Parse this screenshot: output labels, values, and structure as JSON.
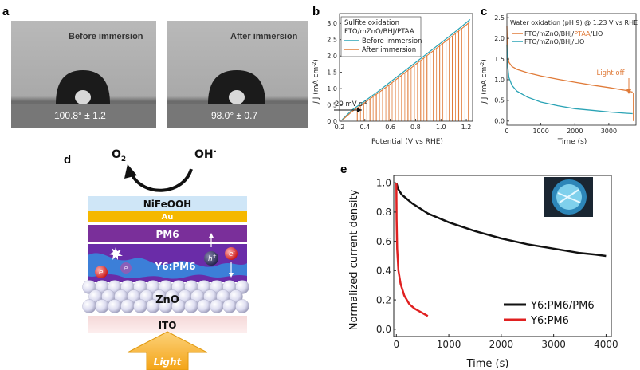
{
  "panel_labels": {
    "a": "a",
    "b": "b",
    "c": "c",
    "d": "d",
    "e": "e"
  },
  "panel_a": {
    "left": {
      "caption": "Before immersion",
      "angle": "100.8° ± 1.2"
    },
    "right": {
      "caption": "After immersion",
      "angle": "98.0° ± 0.7"
    }
  },
  "panel_d": {
    "o2": "O",
    "o2_sub": "2",
    "oh": "OH",
    "oh_sup": "-",
    "layers": {
      "nifeooh": "NiFeOOH",
      "au": "Au",
      "pm6": "PM6",
      "y6pm6": "Y6:PM6",
      "zno": "ZnO",
      "ito": "ITO"
    },
    "carriers": {
      "electron": "e",
      "hole": "h",
      "minus": "-",
      "plus": "+"
    },
    "light": "Light"
  },
  "chart_data": [
    {
      "panel": "b",
      "type": "line",
      "title": "Sulfite oxidation",
      "subtitle": "FTO/mZnO/BHJ/PTAA",
      "xlabel": "Potential (V vs RHE)",
      "ylabel_main": "J (mA cm",
      "ylabel_sup": "-2",
      "ylabel_end": ")",
      "xlim": [
        0.2,
        1.25
      ],
      "ylim": [
        0,
        3.3
      ],
      "xticks": [
        "0.2",
        "0.4",
        "0.6",
        "0.8",
        "1.0",
        "1.2"
      ],
      "yticks": [
        "0.0",
        "0.5",
        "1.0",
        "1.5",
        "2.0",
        "2.5",
        "3.0"
      ],
      "annotation": "20 mV s",
      "annotation_sup": "-1",
      "series": [
        {
          "name": "Before immersion",
          "color": "#2aa3b5",
          "chopped": false,
          "x": [
            0.22,
            0.3,
            0.4,
            0.5,
            0.6,
            0.7,
            0.8,
            0.9,
            1.0,
            1.1,
            1.2,
            1.23
          ],
          "y": [
            0.05,
            0.35,
            0.62,
            0.9,
            1.2,
            1.5,
            1.8,
            2.1,
            2.4,
            2.7,
            3.02,
            3.12
          ]
        },
        {
          "name": "After immersion",
          "color": "#e07b39",
          "chopped": true,
          "x": [
            0.22,
            0.3,
            0.4,
            0.5,
            0.6,
            0.7,
            0.8,
            0.9,
            1.0,
            1.1,
            1.2,
            1.23
          ],
          "y": [
            0.03,
            0.3,
            0.57,
            0.85,
            1.14,
            1.44,
            1.74,
            2.04,
            2.34,
            2.64,
            2.95,
            3.05
          ],
          "chop_x": [
            0.34,
            0.39,
            0.44,
            0.49,
            0.54,
            0.59,
            0.64,
            0.69,
            0.74,
            0.79,
            0.84,
            0.89,
            0.94,
            0.99,
            1.04,
            1.09,
            1.14,
            1.19
          ]
        }
      ]
    },
    {
      "panel": "c",
      "type": "line",
      "title": "Water oxidation (pH 9) @ 1.23 V vs RHE",
      "xlabel": "Time (s)",
      "ylabel_main": "J (mA cm",
      "ylabel_sup": "-2",
      "ylabel_end": ")",
      "xlim": [
        0,
        3800
      ],
      "ylim": [
        -0.1,
        2.6
      ],
      "xticks": [
        "0",
        "1000",
        "2000",
        "3000"
      ],
      "yticks": [
        "0.0",
        "0.5",
        "1.0",
        "1.5",
        "2.0",
        "2.5"
      ],
      "annotation": "Light off",
      "legend": [
        {
          "prefix": "FTO/mZnO/BHJ/",
          "highlight": "PTAA",
          "suffix": "/LIO",
          "color": "#e07b39"
        },
        {
          "prefix": "FTO/mZnO/BHJ/LIO",
          "highlight": "",
          "suffix": "",
          "color": "#2aa3b5"
        }
      ],
      "series": [
        {
          "name": "FTO/mZnO/BHJ/PTAA/LIO",
          "color": "#e07b39",
          "x": [
            0,
            20,
            60,
            150,
            300,
            600,
            1000,
            1500,
            2000,
            2500,
            3000,
            3500,
            3700
          ],
          "y": [
            2.3,
            1.6,
            1.42,
            1.32,
            1.25,
            1.17,
            1.09,
            1.01,
            0.94,
            0.87,
            0.81,
            0.74,
            0.7
          ]
        },
        {
          "name": "FTO/mZnO/BHJ/LIO",
          "color": "#2aa3b5",
          "x": [
            0,
            20,
            60,
            150,
            300,
            600,
            1000,
            1500,
            2000,
            2500,
            3000,
            3500,
            3700
          ],
          "y": [
            1.85,
            1.35,
            1.05,
            0.86,
            0.72,
            0.58,
            0.46,
            0.37,
            0.3,
            0.26,
            0.22,
            0.19,
            0.18
          ]
        }
      ]
    },
    {
      "panel": "e",
      "type": "line",
      "xlabel": "Time (s)",
      "ylabel": "Normalized current density",
      "xlim": [
        -50,
        4100
      ],
      "ylim": [
        -0.05,
        1.05
      ],
      "xticks": [
        "0",
        "1000",
        "2000",
        "3000",
        "4000"
      ],
      "yticks": [
        "0.0",
        "0.2",
        "0.4",
        "0.6",
        "0.8",
        "1.0"
      ],
      "series": [
        {
          "name": "Y6:PM6/PM6",
          "color": "#111111",
          "x": [
            0,
            30,
            100,
            300,
            600,
            1000,
            1500,
            2000,
            2500,
            3000,
            3500,
            3800,
            4000
          ],
          "y": [
            1.0,
            0.96,
            0.92,
            0.86,
            0.79,
            0.73,
            0.67,
            0.62,
            0.58,
            0.55,
            0.52,
            0.51,
            0.5
          ]
        },
        {
          "name": "Y6:PM6",
          "color": "#e02020",
          "x": [
            0,
            5,
            15,
            40,
            80,
            150,
            250,
            350,
            450,
            550,
            600
          ],
          "y": [
            1.0,
            0.75,
            0.55,
            0.4,
            0.31,
            0.23,
            0.17,
            0.14,
            0.12,
            0.1,
            0.09
          ]
        }
      ]
    }
  ]
}
